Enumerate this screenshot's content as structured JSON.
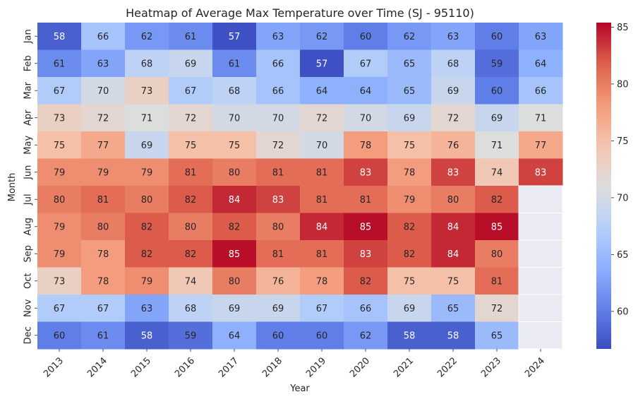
{
  "chart_data": {
    "type": "heatmap",
    "title": "Heatmap of Average Max Temperature over Time (SJ - 95110)",
    "xlabel": "Year",
    "ylabel": "Month",
    "x_categories": [
      "2013",
      "2014",
      "2015",
      "2016",
      "2017",
      "2018",
      "2019",
      "2020",
      "2021",
      "2022",
      "2023",
      "2024"
    ],
    "y_categories": [
      "Jan",
      "Feb",
      "Mar",
      "Apr",
      "May",
      "Jun",
      "Jul",
      "Aug",
      "Sep",
      "Oct",
      "Nov",
      "Dec"
    ],
    "values": [
      [
        58,
        66,
        62,
        61,
        57,
        63,
        62,
        60,
        62,
        63,
        60,
        63
      ],
      [
        61,
        63,
        68,
        69,
        61,
        66,
        57,
        67,
        65,
        68,
        59,
        64
      ],
      [
        67,
        70,
        73,
        67,
        68,
        66,
        64,
        64,
        65,
        69,
        60,
        66
      ],
      [
        73,
        72,
        71,
        72,
        70,
        70,
        72,
        70,
        69,
        72,
        69,
        71
      ],
      [
        75,
        77,
        69,
        75,
        75,
        72,
        70,
        78,
        75,
        76,
        71,
        77
      ],
      [
        79,
        79,
        79,
        81,
        80,
        81,
        81,
        83,
        78,
        83,
        74,
        83
      ],
      [
        80,
        81,
        80,
        82,
        84,
        83,
        81,
        81,
        79,
        80,
        82,
        null
      ],
      [
        79,
        80,
        82,
        80,
        82,
        80,
        84,
        85,
        82,
        84,
        85,
        null
      ],
      [
        79,
        78,
        82,
        82,
        85,
        81,
        81,
        83,
        82,
        84,
        80,
        null
      ],
      [
        73,
        78,
        79,
        74,
        80,
        76,
        78,
        82,
        75,
        75,
        81,
        null
      ],
      [
        67,
        67,
        63,
        68,
        69,
        69,
        67,
        66,
        69,
        65,
        72,
        null
      ],
      [
        60,
        61,
        58,
        59,
        64,
        60,
        60,
        62,
        58,
        58,
        65,
        null
      ]
    ],
    "colorbar": {
      "colormap": "coolwarm",
      "vmin": 56.7,
      "vmax": 85.4,
      "ticks": [
        60,
        65,
        70,
        75,
        80,
        85
      ]
    },
    "missing_color": "#eaeaf2"
  }
}
